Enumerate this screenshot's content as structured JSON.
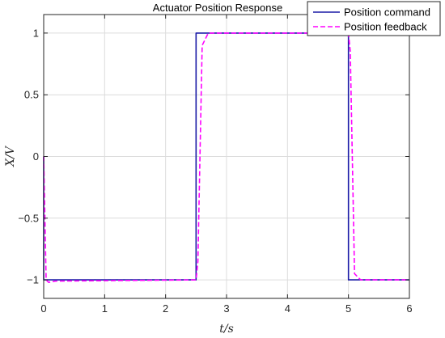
{
  "chart_data": {
    "type": "line",
    "title": "Actuator Position Response",
    "xlabel": "t/s",
    "ylabel": "X/V",
    "xlim": [
      0,
      6
    ],
    "ylim": [
      -1.15,
      1.15
    ],
    "x_ticks": [
      0,
      1,
      2,
      3,
      4,
      5,
      6
    ],
    "x_tick_labels": [
      "0",
      "1",
      "2",
      "3",
      "4",
      "5",
      "6"
    ],
    "y_ticks": [
      -1,
      -0.5,
      0,
      0.5,
      1
    ],
    "y_tick_labels": [
      "−1",
      "−0.5",
      "0",
      "0.5",
      "1"
    ],
    "grid": true,
    "legend_position": "top-right",
    "series": [
      {
        "name": "Position command",
        "color": "#1a1aa6",
        "style": "solid",
        "x": [
          0,
          0,
          2.5,
          2.5,
          5.0,
          5.0,
          6.0
        ],
        "y": [
          0,
          -1,
          -1,
          1,
          1,
          -1,
          -1
        ]
      },
      {
        "name": "Position feedback",
        "color": "#ff00ff",
        "style": "dashed",
        "x": [
          0,
          0.04,
          0.08,
          0.2,
          2.5,
          2.53,
          2.6,
          2.7,
          5.0,
          5.03,
          5.1,
          5.2,
          6.0
        ],
        "y": [
          0,
          -1.0,
          -1.02,
          -1.01,
          -1.0,
          -0.85,
          0.9,
          1.0,
          1.0,
          0.85,
          -0.95,
          -1.0,
          -1.0
        ]
      }
    ]
  }
}
